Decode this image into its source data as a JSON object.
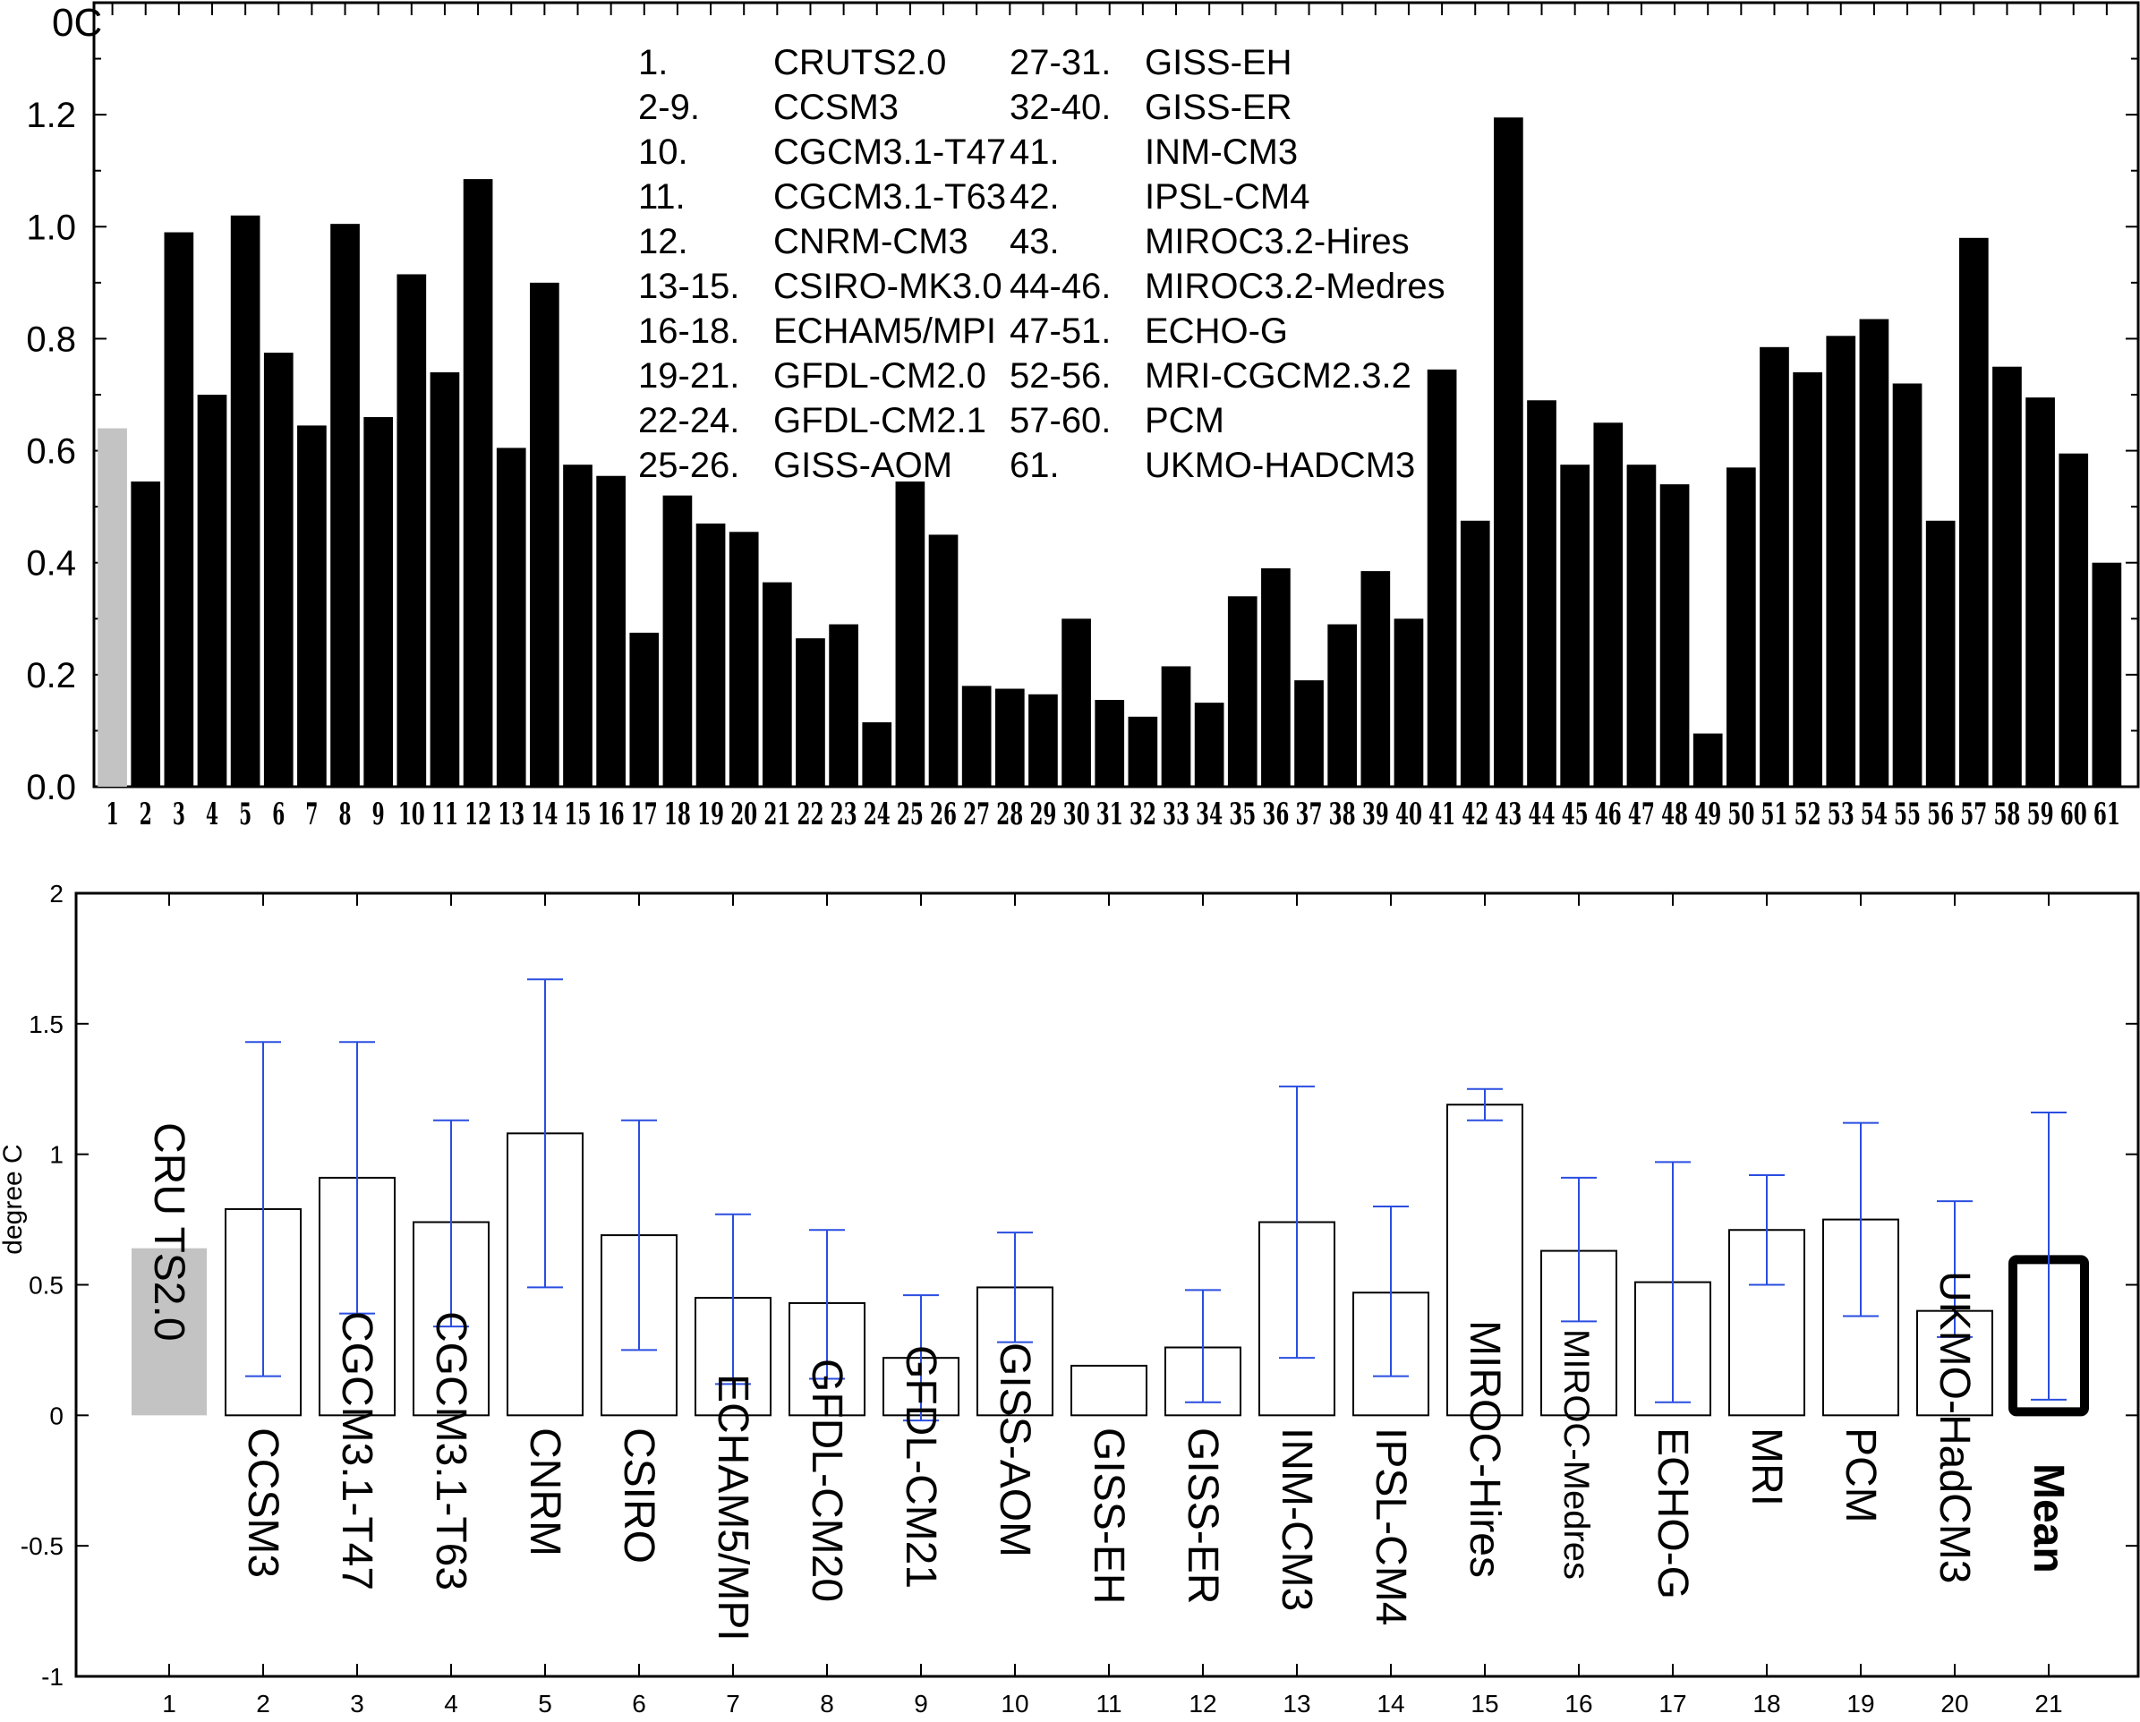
{
  "chart_data": [
    {
      "type": "bar",
      "ylabel": "0C",
      "ylim": [
        0,
        1.4
      ],
      "yticks": [
        "0.0",
        "0.2",
        "0.4",
        "0.6",
        "0.8",
        "1.0",
        "1.2"
      ],
      "categories": [
        "1",
        "2",
        "3",
        "4",
        "5",
        "6",
        "7",
        "8",
        "9",
        "10",
        "11",
        "12",
        "13",
        "14",
        "15",
        "16",
        "17",
        "18",
        "19",
        "20",
        "21",
        "22",
        "23",
        "24",
        "25",
        "26",
        "27",
        "28",
        "29",
        "30",
        "31",
        "32",
        "33",
        "34",
        "35",
        "36",
        "37",
        "38",
        "39",
        "40",
        "41",
        "42",
        "43",
        "44",
        "45",
        "46",
        "47",
        "48",
        "49",
        "50",
        "51",
        "52",
        "53",
        "54",
        "55",
        "56",
        "57",
        "58",
        "59",
        "60",
        "61"
      ],
      "values": [
        0.64,
        0.545,
        0.99,
        0.7,
        1.02,
        0.775,
        0.645,
        1.005,
        0.66,
        0.915,
        0.74,
        1.085,
        0.605,
        0.9,
        0.575,
        0.555,
        0.275,
        0.52,
        0.47,
        0.455,
        0.365,
        0.265,
        0.29,
        0.115,
        0.545,
        0.45,
        0.18,
        0.175,
        0.165,
        0.3,
        0.155,
        0.125,
        0.215,
        0.15,
        0.34,
        0.39,
        0.19,
        0.29,
        0.385,
        0.3,
        0.745,
        0.475,
        1.195,
        0.69,
        0.575,
        0.65,
        0.575,
        0.54,
        0.095,
        0.57,
        0.785,
        0.74,
        0.805,
        0.835,
        0.72,
        0.475,
        0.98,
        0.75,
        0.695,
        0.595,
        0.4
      ],
      "colors": {
        "observed": "#c3c3c3",
        "model": "#000000"
      },
      "legend": [
        {
          "idx": "1.",
          "name": "CRUTS2.0"
        },
        {
          "idx": "2-9.",
          "name": "CCSM3"
        },
        {
          "idx": "10.",
          "name": "CGCM3.1-T47"
        },
        {
          "idx": "11.",
          "name": "CGCM3.1-T63"
        },
        {
          "idx": "12.",
          "name": "CNRM-CM3"
        },
        {
          "idx": "13-15.",
          "name": "CSIRO-MK3.0"
        },
        {
          "idx": "16-18.",
          "name": "ECHAM5/MPI"
        },
        {
          "idx": "19-21.",
          "name": "GFDL-CM2.0"
        },
        {
          "idx": "22-24.",
          "name": "GFDL-CM2.1"
        },
        {
          "idx": "25-26.",
          "name": "GISS-AOM"
        },
        {
          "idx": "27-31.",
          "name": "GISS-EH"
        },
        {
          "idx": "32-40.",
          "name": "GISS-ER"
        },
        {
          "idx": "41.",
          "name": "INM-CM3"
        },
        {
          "idx": "42.",
          "name": "IPSL-CM4"
        },
        {
          "idx": "43.",
          "name": "MIROC3.2-Hires"
        },
        {
          "idx": "44-46.",
          "name": "MIROC3.2-Medres"
        },
        {
          "idx": "47-51.",
          "name": "ECHO-G"
        },
        {
          "idx": "52-56.",
          "name": "MRI-CGCM2.3.2"
        },
        {
          "idx": "57-60.",
          "name": "PCM"
        },
        {
          "idx": "61.",
          "name": "UKMO-HADCM3"
        }
      ],
      "legend_placement": "top-center"
    },
    {
      "type": "bar",
      "ylabel": "degree C",
      "ylim": [
        -1,
        2
      ],
      "yticks": [
        "-1",
        "-0.5",
        "0",
        "0.5",
        "1",
        "1.5",
        "2"
      ],
      "categories": [
        "1",
        "2",
        "3",
        "4",
        "5",
        "6",
        "7",
        "8",
        "9",
        "10",
        "11",
        "12",
        "13",
        "14",
        "15",
        "16",
        "17",
        "18",
        "19",
        "20",
        "21"
      ],
      "labels": [
        "CRU TS2.0",
        "CCSM3",
        "CGCM3.1-T47",
        "CGCM3.1-T63",
        "CNRM",
        "CSIRO",
        "ECHAM5/MPI",
        "GFDL-CM20",
        "GFDL-CM21",
        "GISS-AOM",
        "GISS-EH",
        "GISS-ER",
        "INM-CM3",
        "IPSL-CM4",
        "MIROC-Hires",
        "MIROC-Medres",
        "ECHO-G",
        "MRI",
        "PCM",
        "UKMO-HadCM3",
        "Mean"
      ],
      "values": [
        0.64,
        0.79,
        0.91,
        0.74,
        1.08,
        0.69,
        0.45,
        0.43,
        0.22,
        0.49,
        0.19,
        0.26,
        0.74,
        0.47,
        1.19,
        0.63,
        0.51,
        0.71,
        0.75,
        0.4,
        0.61
      ],
      "error_low": [
        null,
        0.15,
        0.39,
        0.34,
        0.49,
        0.25,
        0.12,
        0.14,
        -0.02,
        0.28,
        null,
        0.05,
        0.22,
        0.15,
        1.13,
        0.36,
        0.05,
        0.5,
        0.38,
        0.3,
        0.06
      ],
      "error_high": [
        null,
        1.43,
        1.43,
        1.13,
        1.67,
        1.13,
        0.77,
        0.71,
        0.46,
        0.7,
        null,
        0.48,
        1.26,
        0.8,
        1.25,
        0.91,
        0.97,
        0.92,
        1.12,
        0.82,
        1.16
      ],
      "colors": {
        "observed": "#c3c3c3",
        "error_bar": "#2a4ee0",
        "mean_outline": "#000000"
      }
    }
  ]
}
